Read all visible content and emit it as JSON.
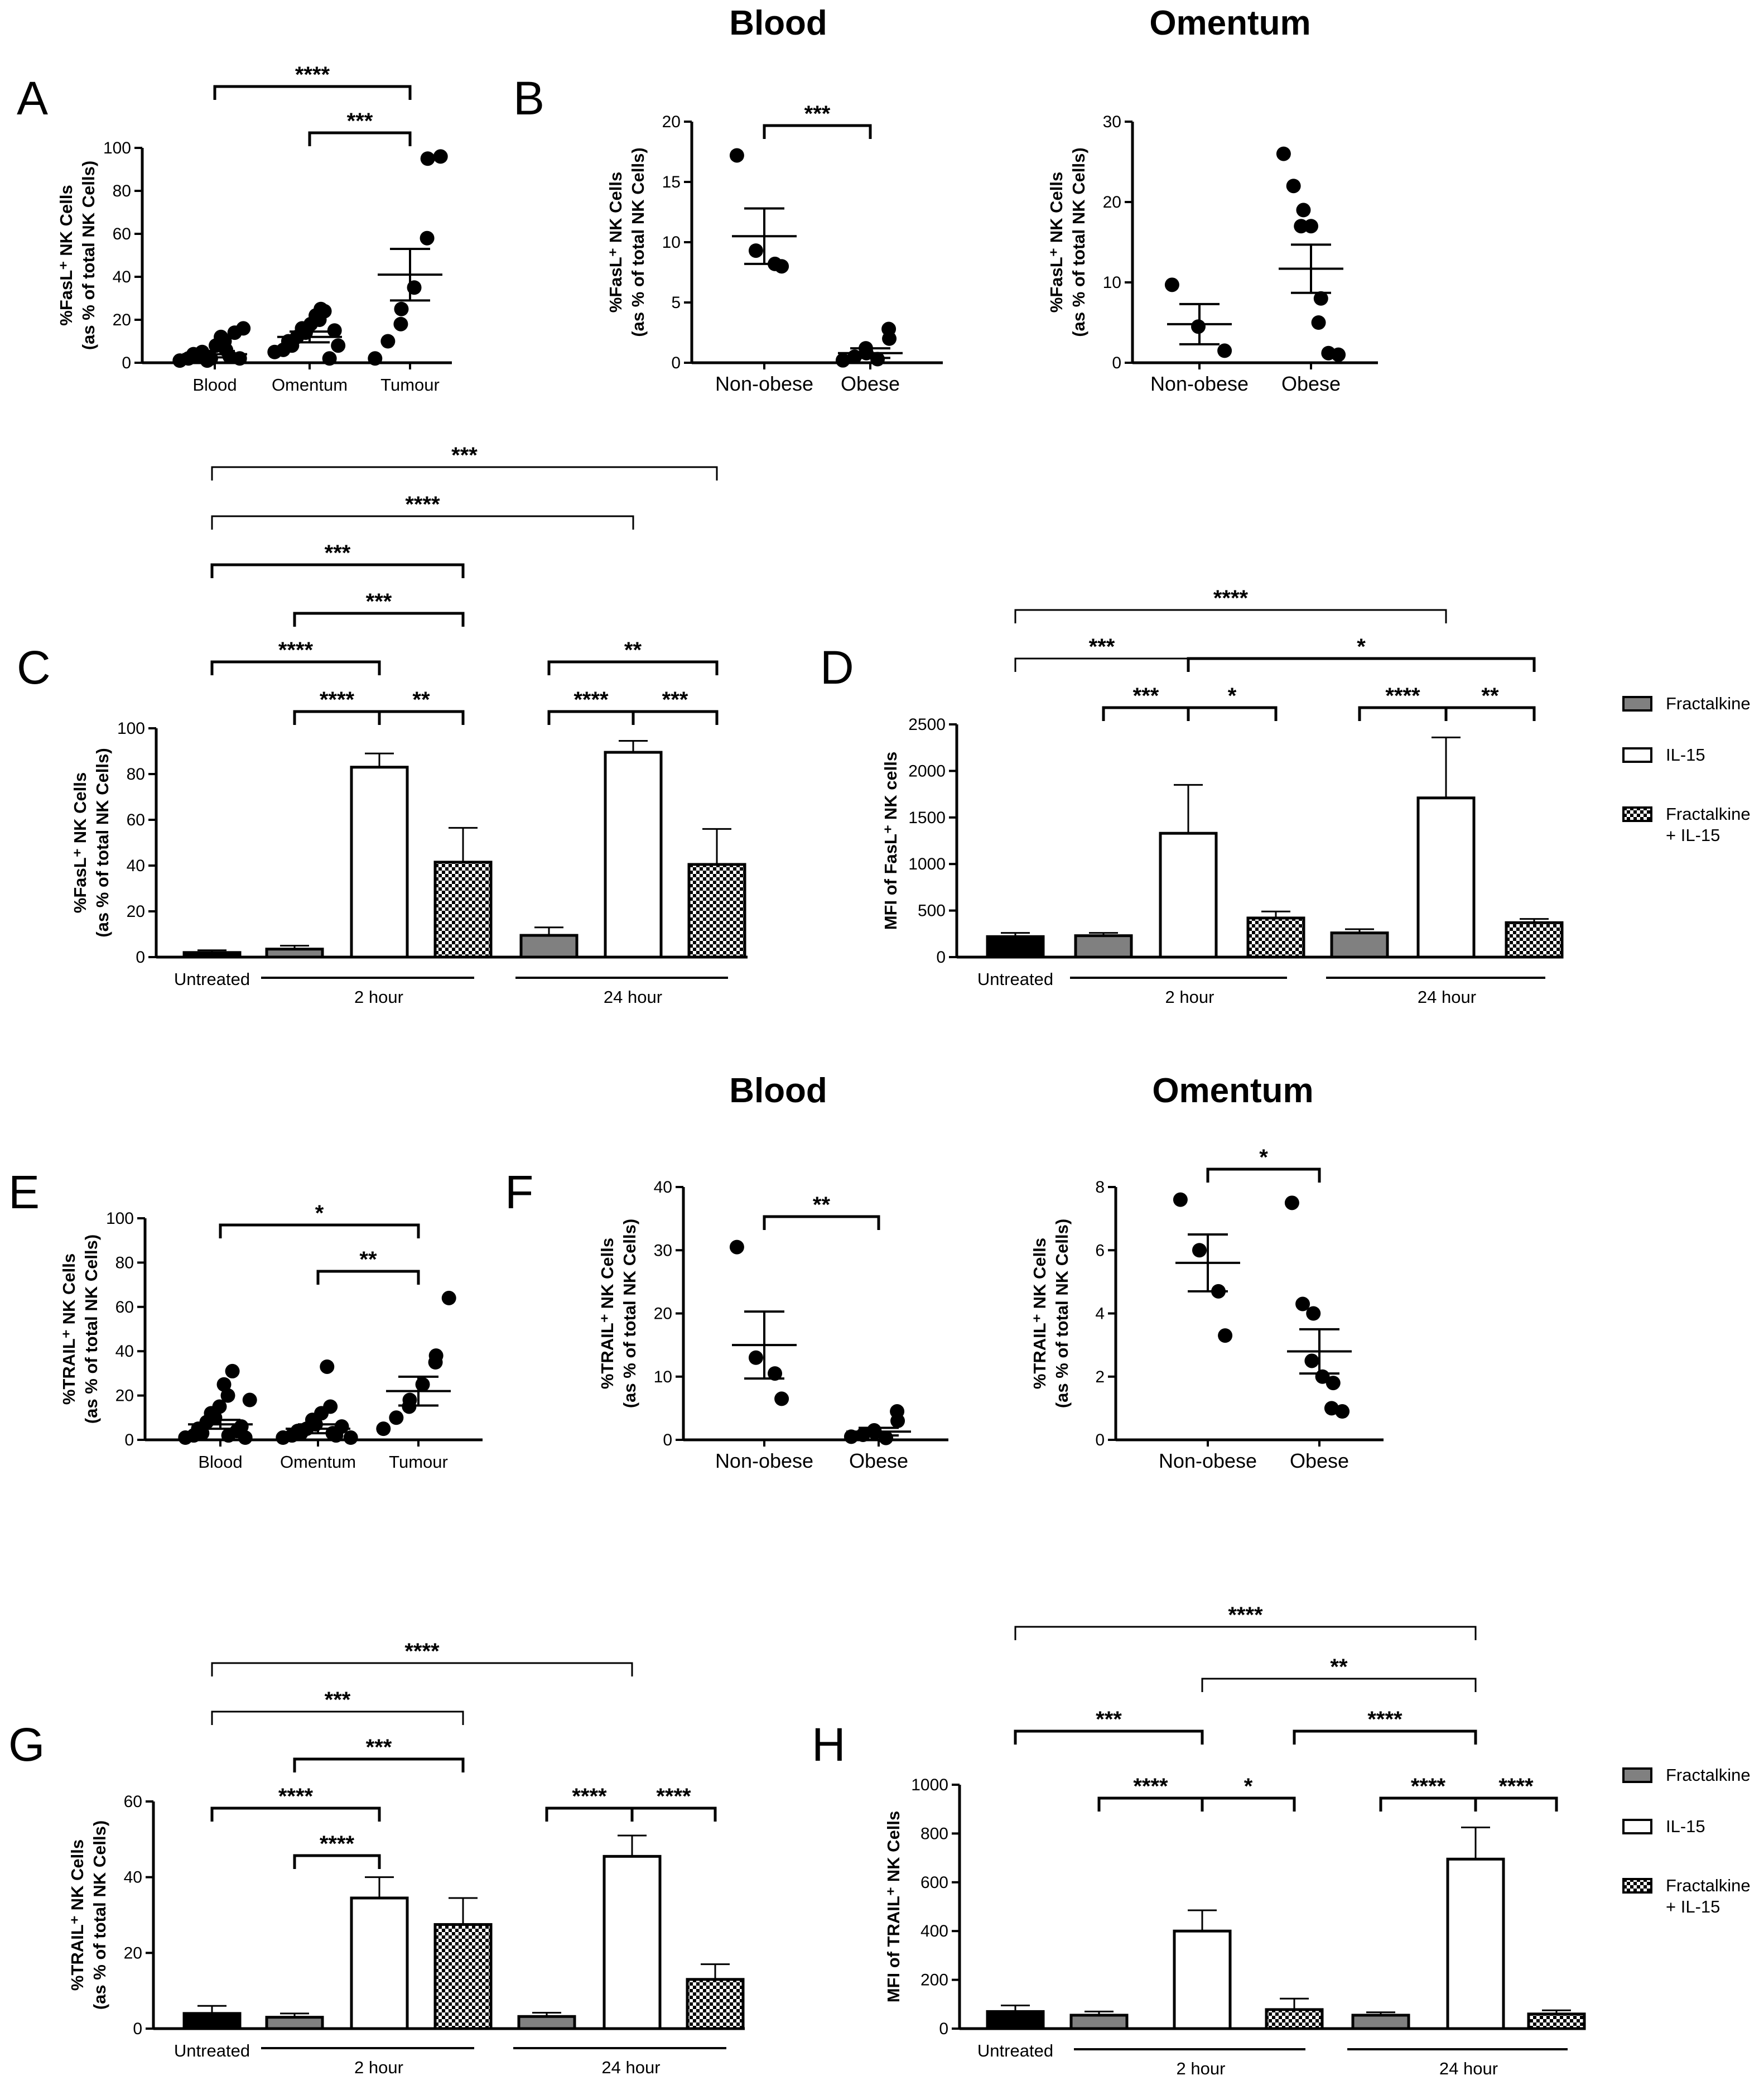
{
  "colors": {
    "dark": "#000000",
    "grey": "#808080",
    "white": "#ffffff",
    "check": "#000000"
  },
  "row1_titles": {
    "blood": "Blood",
    "omentum": "Omentum"
  },
  "row3_titles": {
    "blood": "Blood",
    "omentum": "Omentum"
  },
  "legend": [
    {
      "label": "Fractalkine",
      "kind": "grey"
    },
    {
      "label": "IL-15",
      "kind": "white"
    },
    {
      "label": "Fractalkine",
      "label2": "+ IL-15",
      "kind": "check"
    }
  ],
  "chart_data": [
    {
      "id": "A",
      "panel_letter": "A",
      "type": "scatter",
      "ylabel": "%FasL⁺ NK Cells",
      "ylabel2": "(as % of total NK Cells)",
      "ylim": [
        0,
        100
      ],
      "yticks": [
        0,
        20,
        40,
        60,
        80,
        100
      ],
      "categories": [
        "Blood",
        "Omentum",
        "Tumour"
      ],
      "points": [
        [
          1,
          2,
          3,
          4,
          5,
          2,
          1,
          8,
          10,
          12,
          3,
          6,
          14,
          16,
          2
        ],
        [
          5,
          6,
          8,
          10,
          12,
          14,
          16,
          18,
          20,
          22,
          24,
          25,
          2,
          8,
          15
        ],
        [
          2,
          10,
          18,
          25,
          35,
          58,
          95,
          96
        ]
      ],
      "mean": [
        4,
        12,
        41
      ],
      "sem": [
        1.5,
        2.5,
        12
      ],
      "sig": [
        {
          "from": 0,
          "to": 2,
          "label": "****"
        },
        {
          "from": 1,
          "to": 2,
          "label": "***"
        }
      ]
    },
    {
      "id": "B1",
      "panel_letter": "B",
      "type": "scatter",
      "ylabel": "%FasL⁺ NK Cells",
      "ylabel2": "(as % of total NK Cells)",
      "ylim": [
        0,
        20
      ],
      "yticks": [
        0,
        5,
        10,
        15,
        20
      ],
      "categories": [
        "Non-obese",
        "Obese"
      ],
      "points": [
        [
          17.2,
          9.3,
          8.2,
          8.0
        ],
        [
          0.2,
          0.5,
          0.8,
          1.2,
          0.3,
          2.0,
          2.8
        ]
      ],
      "mean": [
        10.5,
        0.8
      ],
      "sem": [
        2.3,
        0.4
      ],
      "sig": [
        {
          "from": 0,
          "to": 1,
          "label": "***"
        }
      ]
    },
    {
      "id": "B2",
      "panel_letter": "",
      "type": "scatter",
      "ylabel": "%FasL⁺ NK Cells",
      "ylabel2": "(as % of total NK Cells)",
      "ylim": [
        0,
        30
      ],
      "yticks": [
        0,
        10,
        20,
        30
      ],
      "categories": [
        "Non-obese",
        "Obese"
      ],
      "points": [
        [
          9.7,
          4.5,
          1.5
        ],
        [
          26,
          22,
          19,
          17,
          17,
          8,
          5,
          1.2,
          1.0
        ]
      ],
      "mean": [
        4.8,
        11.7
      ],
      "sem": [
        2.5,
        3.0
      ],
      "sig": []
    },
    {
      "id": "C",
      "panel_letter": "C",
      "type": "bar",
      "ylabel": "%FasL⁺ NK Cells",
      "ylabel2": "(as % of total NK Cells)",
      "ylim": [
        0,
        100
      ],
      "yticks": [
        0,
        20,
        40,
        60,
        80,
        100
      ],
      "series_kinds": [
        "dark",
        "grey",
        "white",
        "check",
        "grey",
        "white",
        "check"
      ],
      "values": [
        2,
        3.5,
        83,
        41.5,
        9.5,
        89.5,
        40.5
      ],
      "err": [
        1,
        1.5,
        6,
        15,
        3.5,
        5,
        15.5
      ],
      "group_labels": [
        "Untreated",
        "2 hour",
        "24 hour"
      ],
      "sig": [
        {
          "from": 0,
          "to": 6,
          "label": "***"
        },
        {
          "from": 0,
          "to": 5,
          "label": "****"
        },
        {
          "from": 0,
          "to": 3,
          "label": "***"
        },
        {
          "from": 1,
          "to": 3,
          "label": "***"
        },
        {
          "from": 0,
          "to": 2,
          "label": "****"
        },
        {
          "from": 4,
          "to": 6,
          "label": "**"
        },
        {
          "from": 1,
          "to": 2,
          "label": "****"
        },
        {
          "from": 2,
          "to": 3,
          "label": "**"
        },
        {
          "from": 4,
          "to": 5,
          "label": "****"
        },
        {
          "from": 5,
          "to": 6,
          "label": "***"
        }
      ]
    },
    {
      "id": "D",
      "panel_letter": "D",
      "type": "bar",
      "ylabel": "MFI of FasL⁺ NK cells",
      "ylabel2": "",
      "ylim": [
        0,
        2500
      ],
      "yticks": [
        0,
        500,
        1000,
        1500,
        2000,
        2500
      ],
      "series_kinds": [
        "dark",
        "grey",
        "white",
        "check",
        "grey",
        "white",
        "check"
      ],
      "values": [
        220,
        230,
        1330,
        420,
        260,
        1710,
        370
      ],
      "err": [
        40,
        30,
        520,
        70,
        40,
        650,
        40
      ],
      "group_labels": [
        "Untreated",
        "2 hour",
        "24 hour"
      ],
      "sig": [
        {
          "from": 0,
          "to": 5,
          "label": "****"
        },
        {
          "from": 0,
          "to": 2,
          "label": "***"
        },
        {
          "from": 2,
          "to": 6,
          "label": "*"
        },
        {
          "from": 1,
          "to": 2,
          "label": "***"
        },
        {
          "from": 2,
          "to": 3,
          "label": "*"
        },
        {
          "from": 4,
          "to": 5,
          "label": "****"
        },
        {
          "from": 5,
          "to": 6,
          "label": "**"
        }
      ]
    },
    {
      "id": "E",
      "panel_letter": "E",
      "type": "scatter",
      "ylabel": "%TRAIL⁺ NK Cells",
      "ylabel2": "(as % of total NK Cells)",
      "ylim": [
        0,
        100
      ],
      "yticks": [
        0,
        20,
        40,
        60,
        80,
        100
      ],
      "categories": [
        "Blood",
        "Omentum",
        "Tumour"
      ],
      "points": [
        [
          1,
          2,
          3,
          5,
          8,
          10,
          12,
          15,
          20,
          25,
          31,
          2,
          4,
          1,
          6,
          18
        ],
        [
          1,
          2,
          3,
          4,
          5,
          7,
          9,
          12,
          15,
          33,
          2,
          3,
          6,
          1
        ],
        [
          5,
          10,
          15,
          18,
          25,
          35,
          38,
          64
        ]
      ],
      "mean": [
        7,
        5,
        22
      ],
      "sem": [
        2,
        2,
        6.5
      ],
      "sig": [
        {
          "from": 0,
          "to": 2,
          "label": "*"
        },
        {
          "from": 1,
          "to": 2,
          "label": "**"
        }
      ]
    },
    {
      "id": "F1",
      "panel_letter": "F",
      "type": "scatter",
      "ylabel": "%TRAIL⁺ NK Cells",
      "ylabel2": "(as % of total NK Cells)",
      "ylim": [
        0,
        40
      ],
      "yticks": [
        0,
        10,
        20,
        30,
        40
      ],
      "categories": [
        "Non-obese",
        "Obese"
      ],
      "points": [
        [
          30.5,
          13,
          10.5,
          6.5
        ],
        [
          0.5,
          0.8,
          1.2,
          1.5,
          0.3,
          3,
          4.5
        ]
      ],
      "mean": [
        15,
        1.3
      ],
      "sem": [
        5.3,
        0.6
      ],
      "sig": [
        {
          "from": 0,
          "to": 1,
          "label": "**"
        }
      ]
    },
    {
      "id": "F2",
      "panel_letter": "",
      "type": "scatter",
      "ylabel": "%TRAIL⁺ NK Cells",
      "ylabel2": "(as % of total NK Cells)",
      "ylim": [
        0,
        8
      ],
      "yticks": [
        0,
        2,
        4,
        6,
        8
      ],
      "categories": [
        "Non-obese",
        "Obese"
      ],
      "points": [
        [
          7.6,
          6.0,
          4.7,
          3.3
        ],
        [
          7.5,
          4.3,
          4.0,
          2.5,
          2.0,
          1.8,
          1.0,
          0.9
        ]
      ],
      "mean": [
        5.6,
        2.8
      ],
      "sem": [
        0.9,
        0.7
      ],
      "sig": [
        {
          "from": 0,
          "to": 1,
          "label": "*"
        }
      ]
    },
    {
      "id": "G",
      "panel_letter": "G",
      "type": "bar",
      "ylabel": "%TRAIL⁺ NK Cells",
      "ylabel2": "(as % of total NK Cells)",
      "ylim": [
        0,
        60
      ],
      "yticks": [
        0,
        20,
        40,
        60
      ],
      "series_kinds": [
        "dark",
        "grey",
        "white",
        "check",
        "grey",
        "white",
        "check"
      ],
      "values": [
        4,
        3,
        34.5,
        27.5,
        3.2,
        45.5,
        13
      ],
      "err": [
        2,
        1,
        5.5,
        7,
        1,
        5.5,
        4
      ],
      "group_labels": [
        "Untreated",
        "2 hour",
        "24 hour"
      ],
      "sig": [
        {
          "from": 0,
          "to": 5,
          "label": "****"
        },
        {
          "from": 0,
          "to": 3,
          "label": "***"
        },
        {
          "from": 1,
          "to": 3,
          "label": "***"
        },
        {
          "from": 0,
          "to": 2,
          "label": "****"
        },
        {
          "from": 1,
          "to": 2,
          "label": "****"
        },
        {
          "from": 4,
          "to": 5,
          "label": "****"
        },
        {
          "from": 5,
          "to": 6,
          "label": "****"
        }
      ]
    },
    {
      "id": "H",
      "panel_letter": "H",
      "type": "bar",
      "ylabel": "MFI of TRAIL⁺ NK Cells",
      "ylabel2": "",
      "ylim": [
        0,
        1000
      ],
      "yticks": [
        0,
        200,
        400,
        600,
        800,
        1000
      ],
      "series_kinds": [
        "dark",
        "grey",
        "white",
        "check",
        "grey",
        "white",
        "check"
      ],
      "values": [
        70,
        55,
        400,
        78,
        55,
        695,
        60
      ],
      "err": [
        25,
        15,
        85,
        45,
        12,
        130,
        15
      ],
      "group_labels": [
        "Untreated",
        "2 hour",
        "24 hour"
      ],
      "sig": [
        {
          "from": 0,
          "to": 5,
          "label": "****"
        },
        {
          "from": 2,
          "to": 5,
          "label": "**"
        },
        {
          "from": 0,
          "to": 2,
          "label": "***"
        },
        {
          "from": 3,
          "to": 5,
          "label": "****"
        },
        {
          "from": 1,
          "to": 2,
          "label": "****"
        },
        {
          "from": 2,
          "to": 3,
          "label": "*"
        },
        {
          "from": 4,
          "to": 5,
          "label": "****"
        },
        {
          "from": 5,
          "to": 6,
          "label": "****"
        }
      ]
    }
  ]
}
